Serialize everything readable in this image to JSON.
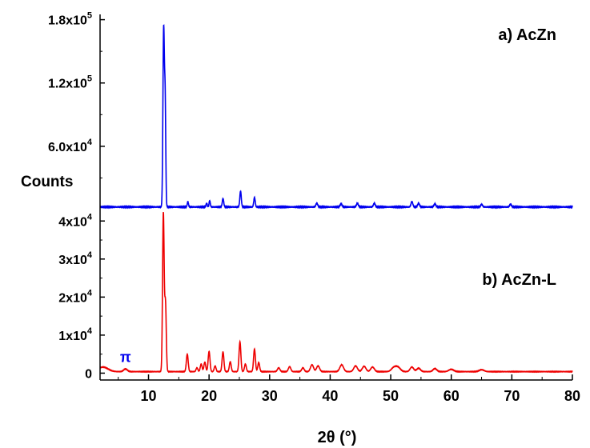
{
  "chart_data": [
    {
      "type": "line",
      "panel_label": "a) AcZn",
      "color": "#0000ee",
      "xlim": [
        2,
        80
      ],
      "ylim": [
        0,
        185000
      ],
      "yticks": [
        {
          "value": 60000,
          "mant": "6.0x10",
          "exp": "4"
        },
        {
          "value": 120000,
          "mant": "1.2x10",
          "exp": "5"
        },
        {
          "value": 180000,
          "mant": "1.8x10",
          "exp": "5"
        }
      ],
      "baseline": 2500,
      "peaks": [
        {
          "x": 12.5,
          "y": 168000,
          "w": 0.12
        },
        {
          "x": 12.75,
          "y": 95000,
          "w": 0.1
        },
        {
          "x": 16.5,
          "y": 5000,
          "w": 0.1
        },
        {
          "x": 19.6,
          "y": 3500,
          "w": 0.1
        },
        {
          "x": 20.1,
          "y": 6000,
          "w": 0.1
        },
        {
          "x": 22.3,
          "y": 8000,
          "w": 0.12
        },
        {
          "x": 25.2,
          "y": 15000,
          "w": 0.12
        },
        {
          "x": 27.5,
          "y": 9000,
          "w": 0.12
        },
        {
          "x": 37.8,
          "y": 3500,
          "w": 0.15
        },
        {
          "x": 41.8,
          "y": 3000,
          "w": 0.15
        },
        {
          "x": 44.5,
          "y": 3500,
          "w": 0.15
        },
        {
          "x": 47.3,
          "y": 3500,
          "w": 0.15
        },
        {
          "x": 53.5,
          "y": 5000,
          "w": 0.15
        },
        {
          "x": 54.6,
          "y": 3500,
          "w": 0.15
        },
        {
          "x": 57.3,
          "y": 3000,
          "w": 0.15
        },
        {
          "x": 65.0,
          "y": 2500,
          "w": 0.15
        },
        {
          "x": 69.8,
          "y": 2500,
          "w": 0.15
        }
      ]
    },
    {
      "type": "line",
      "panel_label": "b) AcZn-L",
      "color": "#ee0000",
      "xlim": [
        2,
        80
      ],
      "ylim": [
        -1800,
        43000
      ],
      "yticks": [
        {
          "value": 0,
          "mant": "0",
          "exp": ""
        },
        {
          "value": 10000,
          "mant": "1x10",
          "exp": "4"
        },
        {
          "value": 20000,
          "mant": "2x10",
          "exp": "4"
        },
        {
          "value": 30000,
          "mant": "3x10",
          "exp": "4"
        },
        {
          "value": 40000,
          "mant": "4x10",
          "exp": "4"
        }
      ],
      "baseline": 400,
      "peaks": [
        {
          "x": 2.5,
          "y": 1200,
          "w": 0.8
        },
        {
          "x": 6.2,
          "y": 700,
          "w": 0.3
        },
        {
          "x": 12.45,
          "y": 41500,
          "w": 0.13
        },
        {
          "x": 12.8,
          "y": 18000,
          "w": 0.13
        },
        {
          "x": 16.4,
          "y": 4600,
          "w": 0.15
        },
        {
          "x": 18.0,
          "y": 1000,
          "w": 0.15
        },
        {
          "x": 18.7,
          "y": 2000,
          "w": 0.15
        },
        {
          "x": 19.3,
          "y": 2500,
          "w": 0.15
        },
        {
          "x": 20.0,
          "y": 5300,
          "w": 0.15
        },
        {
          "x": 21.0,
          "y": 1500,
          "w": 0.15
        },
        {
          "x": 22.3,
          "y": 5200,
          "w": 0.15
        },
        {
          "x": 23.5,
          "y": 2600,
          "w": 0.15
        },
        {
          "x": 25.1,
          "y": 7800,
          "w": 0.15
        },
        {
          "x": 26.0,
          "y": 2000,
          "w": 0.15
        },
        {
          "x": 27.5,
          "y": 5900,
          "w": 0.15
        },
        {
          "x": 28.2,
          "y": 2400,
          "w": 0.15
        },
        {
          "x": 31.5,
          "y": 1000,
          "w": 0.2
        },
        {
          "x": 33.3,
          "y": 1300,
          "w": 0.2
        },
        {
          "x": 35.5,
          "y": 1000,
          "w": 0.2
        },
        {
          "x": 37.0,
          "y": 1800,
          "w": 0.25
        },
        {
          "x": 38.0,
          "y": 1500,
          "w": 0.25
        },
        {
          "x": 41.9,
          "y": 1800,
          "w": 0.3
        },
        {
          "x": 44.2,
          "y": 1500,
          "w": 0.3
        },
        {
          "x": 45.6,
          "y": 1400,
          "w": 0.3
        },
        {
          "x": 47.0,
          "y": 1200,
          "w": 0.3
        },
        {
          "x": 50.5,
          "y": 1000,
          "w": 0.4
        },
        {
          "x": 51.2,
          "y": 1100,
          "w": 0.4
        },
        {
          "x": 53.5,
          "y": 1200,
          "w": 0.3
        },
        {
          "x": 54.6,
          "y": 900,
          "w": 0.3
        },
        {
          "x": 57.3,
          "y": 800,
          "w": 0.3
        },
        {
          "x": 60.0,
          "y": 600,
          "w": 0.4
        },
        {
          "x": 65.0,
          "y": 500,
          "w": 0.4
        }
      ],
      "annotation": {
        "text": "π",
        "x": 6.2,
        "y": 2500,
        "color": "#0000ee"
      }
    }
  ],
  "shared_x": {
    "ticks": [
      10,
      20,
      30,
      40,
      50,
      60,
      70,
      80
    ],
    "xlabel": "2θ (°)"
  },
  "ylabel": "Counts"
}
